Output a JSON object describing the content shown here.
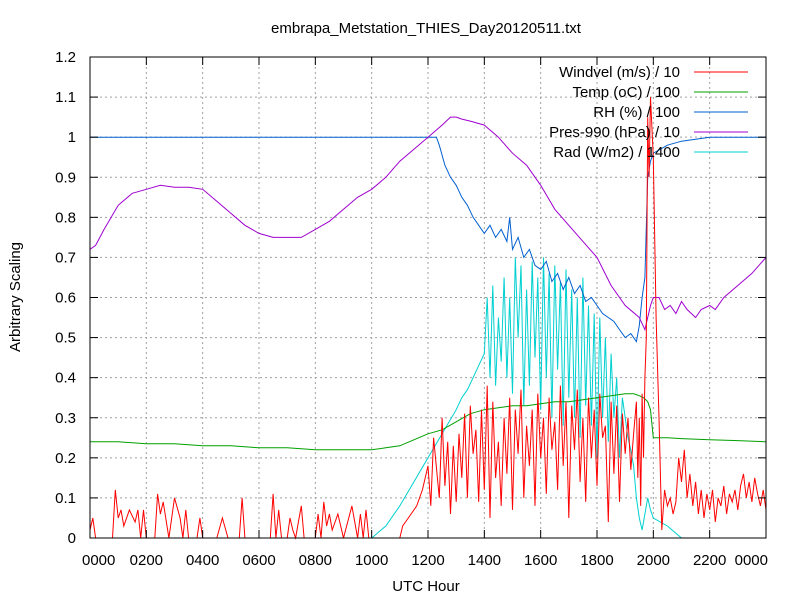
{
  "chart_data": {
    "type": "line",
    "title": "embrapa_Metstation_THIES_Day20120511.txt",
    "xlabel": "UTC Hour",
    "ylabel": "Arbitrary Scaling",
    "xlim": [
      0,
      2400
    ],
    "ylim": [
      0,
      1.2
    ],
    "grid": true,
    "legend_position": "top-right",
    "x_ticks": [
      "0000",
      "0200",
      "0400",
      "0600",
      "0800",
      "1000",
      "1200",
      "1400",
      "1600",
      "1800",
      "2000",
      "2200",
      "0000"
    ],
    "y_ticks": [
      "0",
      "0.1",
      "0.2",
      "0.3",
      "0.4",
      "0.5",
      "0.6",
      "0.7",
      "0.8",
      "0.9",
      "1",
      "1.1",
      "1.2"
    ],
    "series": [
      {
        "name": "Windvel (m/s) / 10",
        "color": "#ff0000",
        "x": [
          0,
          10,
          20,
          30,
          80,
          90,
          100,
          110,
          120,
          140,
          160,
          170,
          180,
          190,
          200,
          230,
          240,
          250,
          260,
          280,
          300,
          320,
          330,
          340,
          350,
          360,
          380,
          390,
          400,
          450,
          470,
          490,
          500,
          530,
          540,
          550,
          560,
          580,
          600,
          640,
          650,
          660,
          670,
          680,
          700,
          710,
          720,
          730,
          740,
          750,
          760,
          780,
          800,
          810,
          820,
          830,
          840,
          850,
          860,
          880,
          900,
          930,
          950,
          960,
          970,
          980,
          990,
          1000,
          1020,
          1040,
          1060,
          1080,
          1100,
          1110,
          1120,
          1140,
          1160,
          1180,
          1200,
          1210,
          1220,
          1240,
          1250,
          1260,
          1270,
          1280,
          1290,
          1300,
          1310,
          1320,
          1330,
          1340,
          1350,
          1360,
          1370,
          1380,
          1390,
          1400,
          1410,
          1420,
          1430,
          1440,
          1450,
          1460,
          1470,
          1480,
          1490,
          1500,
          1510,
          1520,
          1530,
          1540,
          1550,
          1560,
          1570,
          1580,
          1590,
          1600,
          1610,
          1620,
          1630,
          1640,
          1650,
          1660,
          1670,
          1680,
          1690,
          1700,
          1710,
          1720,
          1730,
          1740,
          1750,
          1760,
          1770,
          1780,
          1790,
          1800,
          1810,
          1820,
          1830,
          1840,
          1850,
          1860,
          1870,
          1880,
          1890,
          1900,
          1910,
          1920,
          1930,
          1940,
          1945,
          1950,
          1955,
          1960,
          1965,
          1970,
          1975,
          1980,
          1985,
          1990,
          2000,
          2010,
          2020,
          2030,
          2040,
          2050,
          2060,
          2070,
          2080,
          2090,
          2100,
          2110,
          2120,
          2130,
          2140,
          2150,
          2160,
          2170,
          2180,
          2190,
          2200,
          2210,
          2220,
          2230,
          2240,
          2250,
          2260,
          2270,
          2280,
          2290,
          2300,
          2310,
          2320,
          2330,
          2340,
          2350,
          2360,
          2370,
          2380,
          2390,
          2400
        ],
        "y": [
          0.02,
          0.05,
          0,
          0,
          0,
          0.12,
          0.05,
          0.07,
          0.03,
          0.07,
          0.04,
          0.07,
          0,
          0.07,
          0,
          0,
          0.11,
          0.06,
          0.09,
          0,
          0.1,
          0.05,
          0,
          0.07,
          0,
          0,
          0,
          0.05,
          0,
          0,
          0.05,
          0,
          0,
          0,
          0.1,
          0,
          0,
          0,
          0,
          0,
          0.11,
          0,
          0.07,
          0,
          0,
          0.05,
          0.02,
          0,
          0.04,
          0.08,
          0,
          0,
          0,
          0.06,
          0,
          0.09,
          0.03,
          0.06,
          0.02,
          0.06,
          0,
          0.08,
          0,
          0.06,
          0,
          0.07,
          0,
          0,
          0,
          0,
          0,
          0,
          0,
          0.03,
          0.04,
          0.06,
          0.08,
          0.12,
          0.18,
          0.08,
          0.25,
          0.1,
          0.3,
          0.13,
          0.24,
          0.06,
          0.23,
          0.09,
          0.26,
          0.15,
          0.31,
          0.1,
          0.33,
          0.21,
          0.27,
          0.09,
          0.32,
          0.12,
          0.38,
          0.05,
          0.34,
          0.15,
          0.24,
          0.08,
          0.3,
          0.16,
          0.35,
          0.07,
          0.32,
          0.21,
          0.37,
          0.1,
          0.28,
          0.18,
          0.32,
          0.08,
          0.36,
          0.2,
          0.3,
          0.11,
          0.35,
          0.22,
          0.29,
          0.12,
          0.38,
          0.18,
          0.34,
          0.05,
          0.33,
          0.22,
          0.37,
          0.14,
          0.3,
          0.09,
          0.35,
          0.2,
          0.32,
          0.13,
          0.36,
          0.25,
          0.28,
          0.04,
          0.34,
          0.16,
          0.33,
          0.09,
          0.31,
          0.21,
          0.3,
          0.17,
          0.26,
          0.34,
          0.15,
          0.3,
          0.08,
          0.36,
          0.2,
          0.4,
          0.5,
          1.05,
          0.9,
          1.1,
          0.95,
          0.55,
          0.3,
          0.02,
          0.12,
          0.08,
          0.1,
          0.06,
          0.09,
          0.2,
          0.14,
          0.22,
          0.1,
          0.16,
          0.08,
          0.14,
          0.06,
          0.12,
          0.05,
          0.11,
          0.07,
          0.12,
          0.04,
          0.1,
          0.08,
          0.13,
          0.06,
          0.11,
          0.09,
          0.12,
          0.07,
          0.13,
          0.16,
          0.1,
          0.14,
          0.09,
          0.15,
          0.11,
          0.08,
          0.12,
          0.07
        ]
      },
      {
        "name": "Temp (oC) / 100",
        "color": "#00a000",
        "x": [
          0,
          100,
          200,
          300,
          400,
          500,
          600,
          700,
          800,
          900,
          1000,
          1050,
          1100,
          1150,
          1200,
          1250,
          1300,
          1350,
          1400,
          1450,
          1500,
          1550,
          1600,
          1650,
          1700,
          1750,
          1800,
          1850,
          1900,
          1930,
          1950,
          1965,
          1980,
          1990,
          2000,
          2050,
          2100,
          2200,
          2300,
          2400
        ],
        "y": [
          0.24,
          0.24,
          0.235,
          0.235,
          0.23,
          0.23,
          0.225,
          0.225,
          0.22,
          0.22,
          0.22,
          0.225,
          0.23,
          0.245,
          0.26,
          0.27,
          0.29,
          0.31,
          0.32,
          0.325,
          0.33,
          0.33,
          0.335,
          0.34,
          0.34,
          0.345,
          0.35,
          0.355,
          0.36,
          0.36,
          0.355,
          0.35,
          0.34,
          0.32,
          0.25,
          0.25,
          0.248,
          0.245,
          0.243,
          0.24
        ]
      },
      {
        "name": "RH (%) / 100",
        "color": "#0060d0",
        "x": [
          0,
          1200,
          1230,
          1240,
          1260,
          1280,
          1300,
          1320,
          1340,
          1360,
          1380,
          1400,
          1420,
          1440,
          1460,
          1480,
          1490,
          1500,
          1520,
          1540,
          1560,
          1580,
          1600,
          1620,
          1640,
          1660,
          1680,
          1700,
          1720,
          1740,
          1760,
          1780,
          1800,
          1820,
          1840,
          1860,
          1880,
          1900,
          1920,
          1940,
          1950,
          1960,
          1970,
          1980,
          1990,
          2000,
          2050,
          2100,
          2200,
          2300,
          2400
        ],
        "y": [
          1,
          1,
          1,
          0.98,
          0.93,
          0.9,
          0.88,
          0.85,
          0.83,
          0.8,
          0.78,
          0.76,
          0.78,
          0.75,
          0.77,
          0.74,
          0.8,
          0.72,
          0.75,
          0.7,
          0.72,
          0.68,
          0.67,
          0.69,
          0.64,
          0.66,
          0.62,
          0.65,
          0.61,
          0.63,
          0.59,
          0.6,
          0.58,
          0.56,
          0.55,
          0.54,
          0.52,
          0.5,
          0.51,
          0.49,
          0.53,
          0.6,
          0.65,
          0.9,
          0.94,
          0.96,
          0.98,
          0.99,
          1,
          1,
          1
        ]
      },
      {
        "name": "Pres-990 (hPa) / 10",
        "color": "#a000d0",
        "x": [
          0,
          20,
          50,
          100,
          150,
          200,
          250,
          300,
          350,
          400,
          450,
          500,
          550,
          600,
          650,
          700,
          750,
          800,
          850,
          900,
          950,
          1000,
          1050,
          1100,
          1150,
          1200,
          1250,
          1280,
          1300,
          1320,
          1350,
          1400,
          1450,
          1500,
          1550,
          1600,
          1650,
          1700,
          1750,
          1800,
          1850,
          1900,
          1950,
          1970,
          1990,
          2000,
          2020,
          2040,
          2060,
          2080,
          2100,
          2120,
          2150,
          2170,
          2200,
          2220,
          2250,
          2300,
          2350,
          2400
        ],
        "y": [
          0.72,
          0.73,
          0.77,
          0.83,
          0.86,
          0.87,
          0.88,
          0.875,
          0.875,
          0.87,
          0.84,
          0.81,
          0.78,
          0.76,
          0.75,
          0.75,
          0.75,
          0.77,
          0.79,
          0.82,
          0.85,
          0.87,
          0.9,
          0.94,
          0.97,
          1,
          1.03,
          1.05,
          1.05,
          1.045,
          1.04,
          1.03,
          1,
          0.96,
          0.93,
          0.88,
          0.82,
          0.78,
          0.74,
          0.7,
          0.63,
          0.58,
          0.55,
          0.52,
          0.58,
          0.6,
          0.6,
          0.57,
          0.58,
          0.56,
          0.59,
          0.57,
          0.55,
          0.57,
          0.58,
          0.57,
          0.6,
          0.63,
          0.66,
          0.7
        ]
      },
      {
        "name": "Rad (W/m2) / 1400",
        "color": "#00d0d0",
        "x": [
          0,
          1000,
          1050,
          1100,
          1150,
          1200,
          1250,
          1300,
          1320,
          1340,
          1360,
          1380,
          1400,
          1410,
          1420,
          1430,
          1440,
          1450,
          1460,
          1470,
          1480,
          1490,
          1500,
          1510,
          1520,
          1530,
          1540,
          1550,
          1560,
          1570,
          1580,
          1590,
          1600,
          1610,
          1620,
          1630,
          1640,
          1650,
          1660,
          1670,
          1680,
          1690,
          1700,
          1710,
          1720,
          1730,
          1740,
          1750,
          1760,
          1770,
          1780,
          1790,
          1800,
          1810,
          1820,
          1830,
          1840,
          1850,
          1860,
          1870,
          1880,
          1890,
          1900,
          1910,
          1920,
          1930,
          1940,
          1950,
          1960,
          1970,
          1980,
          1990,
          2000,
          2050,
          2100,
          2150,
          2200,
          2400
        ],
        "y": [
          0,
          0,
          0.03,
          0.08,
          0.14,
          0.2,
          0.26,
          0.32,
          0.35,
          0.37,
          0.4,
          0.43,
          0.46,
          0.6,
          0.4,
          0.63,
          0.38,
          0.55,
          0.44,
          0.65,
          0.4,
          0.6,
          0.36,
          0.7,
          0.5,
          0.68,
          0.33,
          0.62,
          0.38,
          0.69,
          0.45,
          0.65,
          0.32,
          0.7,
          0.4,
          0.66,
          0.3,
          0.68,
          0.42,
          0.64,
          0.28,
          0.67,
          0.35,
          0.62,
          0.3,
          0.6,
          0.25,
          0.65,
          0.33,
          0.58,
          0.28,
          0.56,
          0.2,
          0.55,
          0.3,
          0.5,
          0.24,
          0.46,
          0.3,
          0.4,
          0.2,
          0.35,
          0.3,
          0.25,
          0.22,
          0.18,
          0.1,
          0.05,
          0.02,
          0.06,
          0.1,
          0.07,
          0.05,
          0.03,
          0,
          0,
          0,
          0
        ]
      }
    ]
  }
}
